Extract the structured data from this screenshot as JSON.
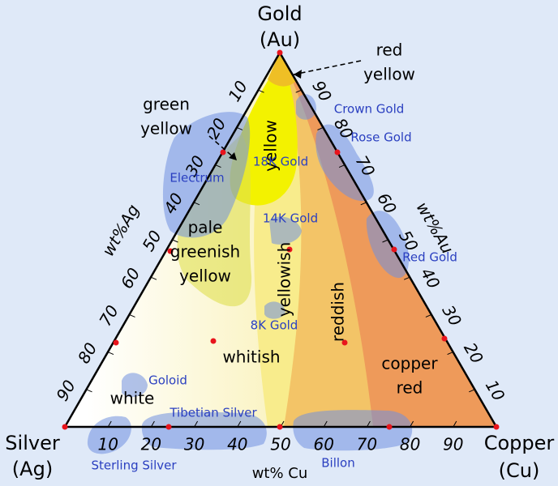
{
  "vertices": [
    {
      "name": "Gold",
      "symbol": "(Au)"
    },
    {
      "name": "Silver",
      "symbol": "(Ag)"
    },
    {
      "name": "Copper",
      "symbol": "(Cu)"
    }
  ],
  "axes": {
    "ag": {
      "label": "wt%Ag",
      "ticks": [
        10,
        20,
        30,
        40,
        50,
        60,
        70,
        80,
        90
      ]
    },
    "au": {
      "label": "wt%Au",
      "ticks": [
        90,
        80,
        70,
        60,
        50,
        40,
        30,
        20,
        10
      ]
    },
    "cu": {
      "label": "wt% Cu",
      "ticks": [
        10,
        20,
        30,
        40,
        50,
        60,
        70,
        80,
        90
      ]
    }
  },
  "color_regions": {
    "red_yellow": [
      "red",
      "yellow"
    ],
    "green_yellow": [
      "green",
      "yellow"
    ],
    "yellow": "yellow",
    "pale_greenish_yellow": [
      "pale",
      "greenish",
      "yellow"
    ],
    "yellowish": "yellowish",
    "reddish": "reddish",
    "whitish": "whitish",
    "white": "white",
    "copper_red": [
      "copper",
      "red"
    ]
  },
  "alloys": {
    "crown_gold": "Crown Gold",
    "rose_gold": "Rose Gold",
    "electrum": "Electrum",
    "gold_18k": "18K Gold",
    "gold_14k": "14K Gold",
    "red_gold": "Red Gold",
    "gold_8k": "8K Gold",
    "goloid": "Goloid",
    "tibetian_silver": "Tibetian Silver",
    "sterling_silver": "Sterling Silver",
    "billon": "Billon"
  }
}
